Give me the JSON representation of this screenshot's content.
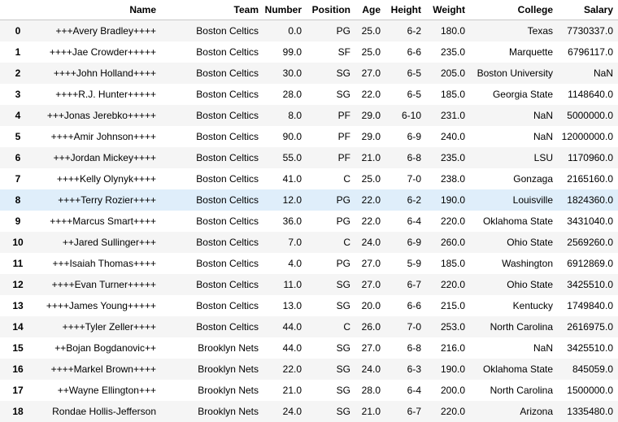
{
  "columns": [
    "",
    "Name",
    "Team",
    "Number",
    "Position",
    "Age",
    "Height",
    "Weight",
    "College",
    "Salary"
  ],
  "highlighted_row": 8,
  "rows": [
    [
      "0",
      "+++Avery Bradley++++",
      "Boston Celtics",
      "0.0",
      "PG",
      "25.0",
      "6-2",
      "180.0",
      "Texas",
      "7730337.0"
    ],
    [
      "1",
      "++++Jae Crowder+++++",
      "Boston Celtics",
      "99.0",
      "SF",
      "25.0",
      "6-6",
      "235.0",
      "Marquette",
      "6796117.0"
    ],
    [
      "2",
      "++++John Holland++++",
      "Boston Celtics",
      "30.0",
      "SG",
      "27.0",
      "6-5",
      "205.0",
      "Boston University",
      "NaN"
    ],
    [
      "3",
      "++++R.J. Hunter+++++",
      "Boston Celtics",
      "28.0",
      "SG",
      "22.0",
      "6-5",
      "185.0",
      "Georgia State",
      "1148640.0"
    ],
    [
      "4",
      "+++Jonas Jerebko+++++",
      "Boston Celtics",
      "8.0",
      "PF",
      "29.0",
      "6-10",
      "231.0",
      "NaN",
      "5000000.0"
    ],
    [
      "5",
      "++++Amir Johnson++++",
      "Boston Celtics",
      "90.0",
      "PF",
      "29.0",
      "6-9",
      "240.0",
      "NaN",
      "12000000.0"
    ],
    [
      "6",
      "+++Jordan Mickey++++",
      "Boston Celtics",
      "55.0",
      "PF",
      "21.0",
      "6-8",
      "235.0",
      "LSU",
      "1170960.0"
    ],
    [
      "7",
      "++++Kelly Olynyk++++",
      "Boston Celtics",
      "41.0",
      "C",
      "25.0",
      "7-0",
      "238.0",
      "Gonzaga",
      "2165160.0"
    ],
    [
      "8",
      "++++Terry Rozier++++",
      "Boston Celtics",
      "12.0",
      "PG",
      "22.0",
      "6-2",
      "190.0",
      "Louisville",
      "1824360.0"
    ],
    [
      "9",
      "++++Marcus Smart++++",
      "Boston Celtics",
      "36.0",
      "PG",
      "22.0",
      "6-4",
      "220.0",
      "Oklahoma State",
      "3431040.0"
    ],
    [
      "10",
      "++Jared Sullinger+++",
      "Boston Celtics",
      "7.0",
      "C",
      "24.0",
      "6-9",
      "260.0",
      "Ohio State",
      "2569260.0"
    ],
    [
      "11",
      "+++Isaiah Thomas++++",
      "Boston Celtics",
      "4.0",
      "PG",
      "27.0",
      "5-9",
      "185.0",
      "Washington",
      "6912869.0"
    ],
    [
      "12",
      "++++Evan Turner+++++",
      "Boston Celtics",
      "11.0",
      "SG",
      "27.0",
      "6-7",
      "220.0",
      "Ohio State",
      "3425510.0"
    ],
    [
      "13",
      "++++James Young+++++",
      "Boston Celtics",
      "13.0",
      "SG",
      "20.0",
      "6-6",
      "215.0",
      "Kentucky",
      "1749840.0"
    ],
    [
      "14",
      "++++Tyler Zeller++++",
      "Boston Celtics",
      "44.0",
      "C",
      "26.0",
      "7-0",
      "253.0",
      "North Carolina",
      "2616975.0"
    ],
    [
      "15",
      "++Bojan Bogdanovic++",
      "Brooklyn Nets",
      "44.0",
      "SG",
      "27.0",
      "6-8",
      "216.0",
      "NaN",
      "3425510.0"
    ],
    [
      "16",
      "++++Markel Brown++++",
      "Brooklyn Nets",
      "22.0",
      "SG",
      "24.0",
      "6-3",
      "190.0",
      "Oklahoma State",
      "845059.0"
    ],
    [
      "17",
      "++Wayne Ellington+++",
      "Brooklyn Nets",
      "21.0",
      "SG",
      "28.0",
      "6-4",
      "200.0",
      "North Carolina",
      "1500000.0"
    ],
    [
      "18",
      "Rondae Hollis-Jefferson",
      "Brooklyn Nets",
      "24.0",
      "SG",
      "21.0",
      "6-7",
      "220.0",
      "Arizona",
      "1335480.0"
    ]
  ]
}
